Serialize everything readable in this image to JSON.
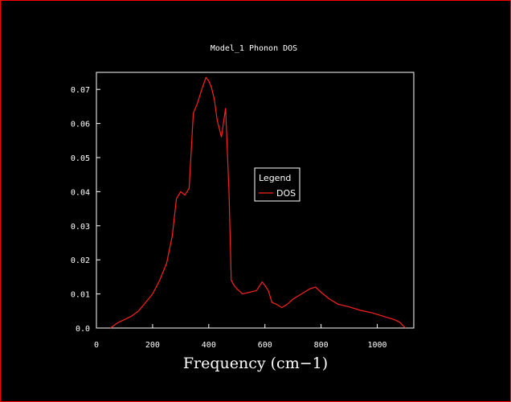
{
  "chart_data": {
    "type": "line",
    "title": "Model_1 Phonon DOS",
    "xlabel": "Frequency (cm−1)",
    "ylabel": "",
    "xlim": [
      0,
      1130
    ],
    "ylim": [
      0,
      0.075
    ],
    "xticks": [
      0,
      200,
      400,
      600,
      800,
      1000
    ],
    "xtick_labels": [
      "0",
      "200",
      "400",
      "600",
      "800",
      "1000"
    ],
    "yticks": [
      0,
      0.01,
      0.02,
      0.03,
      0.04,
      0.05,
      0.06,
      0.07
    ],
    "ytick_labels": [
      "0.0",
      "0.01",
      "0.02",
      "0.03",
      "0.04",
      "0.05",
      "0.06",
      "0.07"
    ],
    "grid": false,
    "legend": {
      "title": "Legend",
      "placement": "center-right"
    },
    "series": [
      {
        "name": "DOS",
        "color": "#ff2020",
        "x": [
          50,
          75,
          100,
          125,
          150,
          175,
          200,
          225,
          250,
          270,
          285,
          300,
          315,
          330,
          345,
          360,
          375,
          390,
          400,
          410,
          420,
          430,
          445,
          460,
          472,
          480,
          490,
          500,
          520,
          545,
          570,
          590,
          600,
          612,
          625,
          640,
          660,
          680,
          700,
          730,
          760,
          780,
          800,
          830,
          860,
          900,
          940,
          980,
          1020,
          1060,
          1080,
          1100
        ],
        "y": [
          0.0,
          0.0015,
          0.0025,
          0.0035,
          0.005,
          0.0075,
          0.01,
          0.014,
          0.019,
          0.027,
          0.038,
          0.04,
          0.039,
          0.041,
          0.063,
          0.066,
          0.07,
          0.0735,
          0.0725,
          0.0705,
          0.067,
          0.061,
          0.056,
          0.0645,
          0.04,
          0.014,
          0.0125,
          0.0115,
          0.01,
          0.0105,
          0.011,
          0.0135,
          0.0125,
          0.011,
          0.0075,
          0.007,
          0.006,
          0.007,
          0.0085,
          0.01,
          0.0115,
          0.012,
          0.0105,
          0.0085,
          0.007,
          0.0062,
          0.0052,
          0.0045,
          0.0035,
          0.0025,
          0.0017,
          0.0
        ]
      }
    ]
  }
}
